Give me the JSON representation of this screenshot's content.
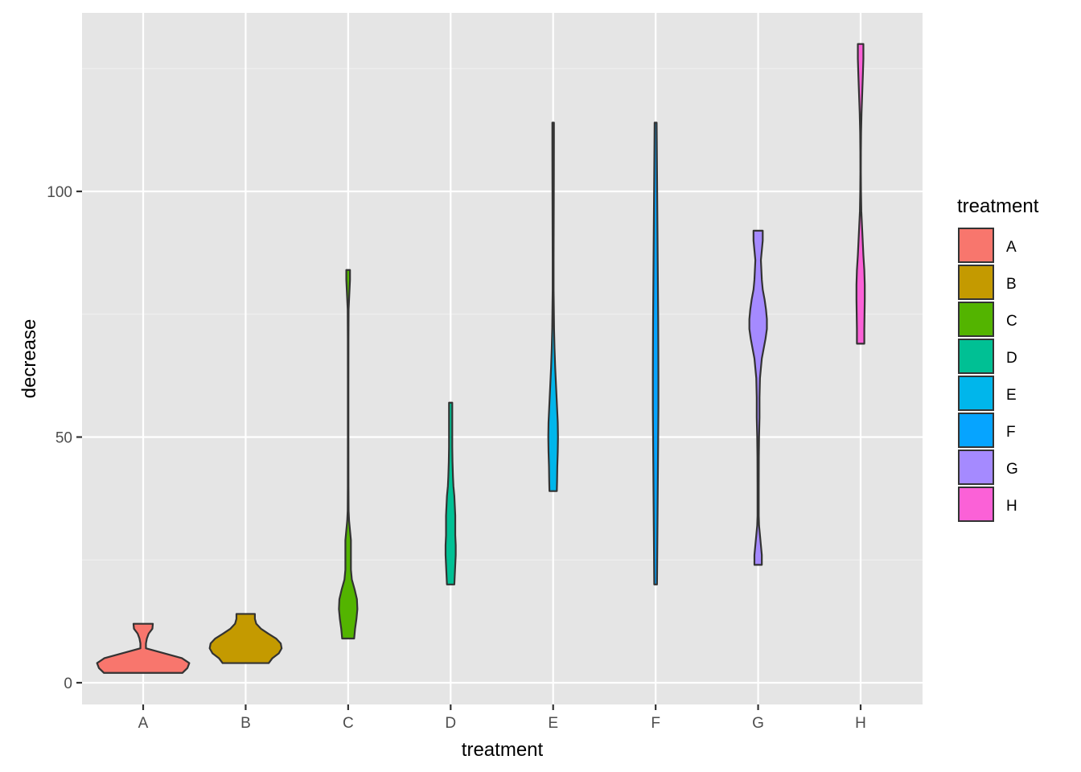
{
  "chart_data": {
    "type": "violin",
    "xlabel": "treatment",
    "ylabel": "decrease",
    "ylim": [
      -4,
      131
    ],
    "y_ticks": [
      0,
      50,
      100
    ],
    "y_tick_labels": [
      "0",
      "50",
      "100"
    ],
    "y_minor_ticks": [
      25,
      75,
      125
    ],
    "categories": [
      "A",
      "B",
      "C",
      "D",
      "E",
      "F",
      "G",
      "H"
    ],
    "legend": {
      "title": "treatment",
      "position": "right"
    },
    "grid": true,
    "panel_background": "#e5e5e5",
    "outline_color": "#333333",
    "series": [
      {
        "label": "A",
        "color": "#F8766D",
        "min": 2,
        "max": 12,
        "profile": [
          [
            2,
            0.85
          ],
          [
            3,
            0.96
          ],
          [
            4,
            1.0
          ],
          [
            5,
            0.84
          ],
          [
            6,
            0.45
          ],
          [
            7,
            0.06
          ],
          [
            8,
            0.06
          ],
          [
            9,
            0.08
          ],
          [
            10,
            0.12
          ],
          [
            11,
            0.2
          ],
          [
            12,
            0.21
          ]
        ]
      },
      {
        "label": "B",
        "color": "#C49A00",
        "min": 4,
        "max": 14,
        "profile": [
          [
            4,
            0.5
          ],
          [
            5,
            0.58
          ],
          [
            6,
            0.72
          ],
          [
            7,
            0.78
          ],
          [
            8,
            0.76
          ],
          [
            9,
            0.66
          ],
          [
            10,
            0.49
          ],
          [
            11,
            0.33
          ],
          [
            12,
            0.23
          ],
          [
            13,
            0.2
          ],
          [
            14,
            0.2
          ]
        ]
      },
      {
        "label": "C",
        "color": "#53B400",
        "min": 9,
        "max": 84,
        "profile": [
          [
            9,
            0.13
          ],
          [
            11,
            0.15
          ],
          [
            13,
            0.18
          ],
          [
            15,
            0.2
          ],
          [
            17,
            0.19
          ],
          [
            19,
            0.14
          ],
          [
            21,
            0.08
          ],
          [
            23,
            0.06
          ],
          [
            25,
            0.06
          ],
          [
            27,
            0.06
          ],
          [
            29,
            0.06
          ],
          [
            31,
            0.04
          ],
          [
            33,
            0.02
          ],
          [
            35,
            0.01
          ],
          [
            40,
            0.007
          ],
          [
            50,
            0.006
          ],
          [
            60,
            0.006
          ],
          [
            70,
            0.007
          ],
          [
            76,
            0.01
          ],
          [
            78,
            0.02
          ],
          [
            80,
            0.03
          ],
          [
            82,
            0.04
          ],
          [
            84,
            0.04
          ]
        ]
      },
      {
        "label": "D",
        "color": "#00C094",
        "min": 20,
        "max": 57,
        "profile": [
          [
            20,
            0.08
          ],
          [
            22,
            0.09
          ],
          [
            24,
            0.1
          ],
          [
            26,
            0.11
          ],
          [
            28,
            0.11
          ],
          [
            30,
            0.1
          ],
          [
            32,
            0.1
          ],
          [
            34,
            0.1
          ],
          [
            36,
            0.09
          ],
          [
            38,
            0.08
          ],
          [
            40,
            0.06
          ],
          [
            42,
            0.05
          ],
          [
            45,
            0.04
          ],
          [
            48,
            0.035
          ],
          [
            51,
            0.035
          ],
          [
            54,
            0.035
          ],
          [
            57,
            0.035
          ]
        ]
      },
      {
        "label": "E",
        "color": "#00B6EB",
        "min": 39,
        "max": 114,
        "profile": [
          [
            39,
            0.08
          ],
          [
            41,
            0.085
          ],
          [
            44,
            0.09
          ],
          [
            47,
            0.1
          ],
          [
            50,
            0.105
          ],
          [
            53,
            0.1
          ],
          [
            56,
            0.085
          ],
          [
            60,
            0.065
          ],
          [
            64,
            0.045
          ],
          [
            68,
            0.03
          ],
          [
            72,
            0.02
          ],
          [
            76,
            0.015
          ],
          [
            80,
            0.01
          ],
          [
            86,
            0.01
          ],
          [
            92,
            0.012
          ],
          [
            98,
            0.014
          ],
          [
            104,
            0.016
          ],
          [
            110,
            0.017
          ],
          [
            114,
            0.017
          ]
        ]
      },
      {
        "label": "F",
        "color": "#06A4FF",
        "min": 20,
        "max": 114,
        "profile": [
          [
            20,
            0.03
          ],
          [
            26,
            0.035
          ],
          [
            32,
            0.04
          ],
          [
            38,
            0.045
          ],
          [
            44,
            0.05
          ],
          [
            50,
            0.055
          ],
          [
            56,
            0.06
          ],
          [
            62,
            0.06
          ],
          [
            68,
            0.058
          ],
          [
            74,
            0.055
          ],
          [
            80,
            0.05
          ],
          [
            86,
            0.045
          ],
          [
            92,
            0.04
          ],
          [
            98,
            0.035
          ],
          [
            104,
            0.03
          ],
          [
            110,
            0.025
          ],
          [
            114,
            0.022
          ]
        ]
      },
      {
        "label": "G",
        "color": "#A58AFF",
        "min": 24,
        "max": 92,
        "profile": [
          [
            24,
            0.08
          ],
          [
            26,
            0.08
          ],
          [
            28,
            0.06
          ],
          [
            30,
            0.04
          ],
          [
            32,
            0.02
          ],
          [
            34,
            0.013
          ],
          [
            40,
            0.013
          ],
          [
            46,
            0.015
          ],
          [
            50,
            0.02
          ],
          [
            54,
            0.03
          ],
          [
            58,
            0.03
          ],
          [
            62,
            0.04
          ],
          [
            64,
            0.06
          ],
          [
            66,
            0.08
          ],
          [
            68,
            0.12
          ],
          [
            70,
            0.16
          ],
          [
            72,
            0.19
          ],
          [
            74,
            0.19
          ],
          [
            76,
            0.17
          ],
          [
            78,
            0.14
          ],
          [
            80,
            0.1
          ],
          [
            82,
            0.08
          ],
          [
            84,
            0.07
          ],
          [
            86,
            0.06
          ],
          [
            88,
            0.08
          ],
          [
            90,
            0.1
          ],
          [
            92,
            0.1
          ]
        ]
      },
      {
        "label": "H",
        "color": "#FB61D7",
        "min": 69,
        "max": 130,
        "profile": [
          [
            69,
            0.08
          ],
          [
            72,
            0.08
          ],
          [
            75,
            0.085
          ],
          [
            78,
            0.09
          ],
          [
            81,
            0.09
          ],
          [
            84,
            0.08
          ],
          [
            87,
            0.06
          ],
          [
            90,
            0.045
          ],
          [
            93,
            0.03
          ],
          [
            96,
            0.015
          ],
          [
            100,
            0.008
          ],
          [
            104,
            0.005
          ],
          [
            108,
            0.006
          ],
          [
            112,
            0.01
          ],
          [
            116,
            0.02
          ],
          [
            120,
            0.035
          ],
          [
            124,
            0.05
          ],
          [
            127,
            0.06
          ],
          [
            130,
            0.06
          ]
        ]
      }
    ]
  }
}
